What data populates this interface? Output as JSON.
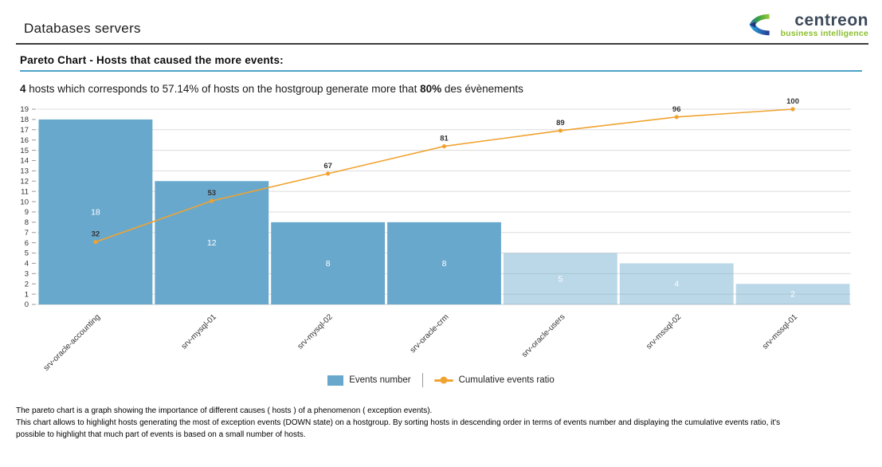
{
  "header": {
    "title": "Databases servers",
    "logo": {
      "brand": "centreon",
      "tagline": "business intelligence"
    }
  },
  "section": {
    "title": "Pareto Chart - Hosts that caused the more events:"
  },
  "summary": {
    "bold_count": "4",
    "text_a": " hosts which corresponds to 57.14% of hosts on the hostgroup generate more that ",
    "bold_pct": "80%",
    "text_b": " des évènements"
  },
  "legend": {
    "events_label": "Events number",
    "ratio_label": "Cumulative events ratio"
  },
  "footer": {
    "description": "The pareto chart is a graph showing the importance of different causes ( hosts ) of a phenomenon ( exception events).\nThis chart allows to highlight hosts generating the most of exception events (DOWN state) on a hostgroup. By sorting hosts in descending order in terms of events number and displaying the cumulative events ratio, it's\npossible to highlight that much part of events is based on a small number of hosts."
  },
  "chart_data": {
    "type": "bar",
    "subtype": "pareto-with-cumulative-line",
    "categories": [
      "srv-oracle-accounting",
      "srv-mysql-01",
      "srv-mysql-02",
      "srv-oracle-crm",
      "srv-oracle-users",
      "srv-mssql-02",
      "srv-mssql-01"
    ],
    "series": [
      {
        "name": "Events number",
        "type": "bar",
        "values": [
          18,
          12,
          8,
          8,
          5,
          4,
          2
        ]
      },
      {
        "name": "Cumulative events ratio",
        "type": "line",
        "values": [
          32,
          53,
          67,
          81,
          89,
          96,
          100
        ]
      }
    ],
    "ylim": [
      0,
      19
    ],
    "y_tick_step": 1,
    "grid_step": 2,
    "ratio_axis": [
      0,
      100
    ],
    "highlight_count": 4,
    "legend_position": "bottom",
    "grid": true,
    "colors": {
      "bar": "#69A8CD",
      "bar_faded_opacity": 0.45,
      "line": "#F0A330",
      "grid": "#DCDCDC",
      "baseline": "#C9C9C9",
      "tick_text": "#333333",
      "bar_label": "#FFFFFF",
      "point_label": "#333333",
      "section_underline": "#4DA3C8"
    }
  }
}
